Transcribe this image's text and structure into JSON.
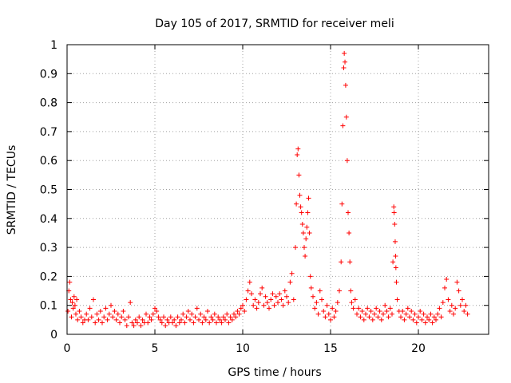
{
  "chart_data": {
    "type": "scatter",
    "title": "Day 105 of 2017, SRMTID for receiver meli",
    "xlabel": "GPS time / hours",
    "ylabel": "SRMTID / TECUs",
    "xlim": [
      0,
      24
    ],
    "ylim": [
      0,
      1
    ],
    "x_ticks": [
      0,
      5,
      10,
      15,
      20
    ],
    "y_ticks": [
      0,
      0.1,
      0.2,
      0.3,
      0.4,
      0.5,
      0.6,
      0.7,
      0.8,
      0.9,
      1
    ],
    "x_tick_labels": [
      "0",
      "5",
      "10",
      "15",
      "20"
    ],
    "y_tick_labels": [
      "0",
      "0.1",
      "0.2",
      "0.3",
      "0.4",
      "0.5",
      "0.6",
      "0.7",
      "0.8",
      "0.9",
      "1"
    ],
    "grid": true,
    "marker": "+",
    "series": [
      {
        "name": "SRMTID",
        "color": "#ff0000",
        "points": [
          [
            0.05,
            0.08
          ],
          [
            0.1,
            0.15
          ],
          [
            0.15,
            0.18
          ],
          [
            0.2,
            0.12
          ],
          [
            0.25,
            0.06
          ],
          [
            0.3,
            0.11
          ],
          [
            0.35,
            0.09
          ],
          [
            0.4,
            0.13
          ],
          [
            0.45,
            0.1
          ],
          [
            0.5,
            0.07
          ],
          [
            0.55,
            0.12
          ],
          [
            0.6,
            0.05
          ],
          [
            0.7,
            0.08
          ],
          [
            0.8,
            0.06
          ],
          [
            0.9,
            0.04
          ],
          [
            1.0,
            0.05
          ],
          [
            1.1,
            0.07
          ],
          [
            1.2,
            0.05
          ],
          [
            1.3,
            0.09
          ],
          [
            1.4,
            0.06
          ],
          [
            1.5,
            0.12
          ],
          [
            1.6,
            0.04
          ],
          [
            1.7,
            0.07
          ],
          [
            1.8,
            0.05
          ],
          [
            1.9,
            0.08
          ],
          [
            2.0,
            0.04
          ],
          [
            2.1,
            0.06
          ],
          [
            2.2,
            0.09
          ],
          [
            2.3,
            0.05
          ],
          [
            2.4,
            0.07
          ],
          [
            2.5,
            0.1
          ],
          [
            2.6,
            0.06
          ],
          [
            2.7,
            0.08
          ],
          [
            2.8,
            0.05
          ],
          [
            2.9,
            0.07
          ],
          [
            3.0,
            0.04
          ],
          [
            3.1,
            0.06
          ],
          [
            3.2,
            0.08
          ],
          [
            3.3,
            0.05
          ],
          [
            3.4,
            0.03
          ],
          [
            3.5,
            0.06
          ],
          [
            3.6,
            0.11
          ],
          [
            3.7,
            0.04
          ],
          [
            3.8,
            0.03
          ],
          [
            3.9,
            0.05
          ],
          [
            4.0,
            0.04
          ],
          [
            4.1,
            0.06
          ],
          [
            4.2,
            0.03
          ],
          [
            4.3,
            0.05
          ],
          [
            4.4,
            0.04
          ],
          [
            4.5,
            0.07
          ],
          [
            4.6,
            0.04
          ],
          [
            4.7,
            0.06
          ],
          [
            4.8,
            0.05
          ],
          [
            4.9,
            0.07
          ],
          [
            5.0,
            0.09
          ],
          [
            5.1,
            0.08
          ],
          [
            5.2,
            0.06
          ],
          [
            5.3,
            0.05
          ],
          [
            5.4,
            0.04
          ],
          [
            5.5,
            0.06
          ],
          [
            5.6,
            0.03
          ],
          [
            5.7,
            0.05
          ],
          [
            5.8,
            0.04
          ],
          [
            5.9,
            0.06
          ],
          [
            6.0,
            0.04
          ],
          [
            6.1,
            0.05
          ],
          [
            6.2,
            0.03
          ],
          [
            6.3,
            0.06
          ],
          [
            6.4,
            0.04
          ],
          [
            6.5,
            0.05
          ],
          [
            6.6,
            0.07
          ],
          [
            6.7,
            0.04
          ],
          [
            6.8,
            0.06
          ],
          [
            6.9,
            0.08
          ],
          [
            7.0,
            0.05
          ],
          [
            7.1,
            0.07
          ],
          [
            7.2,
            0.04
          ],
          [
            7.3,
            0.06
          ],
          [
            7.4,
            0.09
          ],
          [
            7.5,
            0.05
          ],
          [
            7.6,
            0.07
          ],
          [
            7.7,
            0.04
          ],
          [
            7.8,
            0.06
          ],
          [
            7.9,
            0.05
          ],
          [
            8.0,
            0.08
          ],
          [
            8.1,
            0.04
          ],
          [
            8.2,
            0.06
          ],
          [
            8.3,
            0.05
          ],
          [
            8.4,
            0.07
          ],
          [
            8.5,
            0.04
          ],
          [
            8.6,
            0.06
          ],
          [
            8.7,
            0.05
          ],
          [
            8.8,
            0.04
          ],
          [
            8.9,
            0.06
          ],
          [
            9.0,
            0.05
          ],
          [
            9.1,
            0.07
          ],
          [
            9.2,
            0.04
          ],
          [
            9.3,
            0.06
          ],
          [
            9.4,
            0.05
          ],
          [
            9.5,
            0.07
          ],
          [
            9.6,
            0.06
          ],
          [
            9.7,
            0.08
          ],
          [
            9.8,
            0.07
          ],
          [
            9.9,
            0.09
          ],
          [
            10.0,
            0.1
          ],
          [
            10.1,
            0.08
          ],
          [
            10.2,
            0.12
          ],
          [
            10.3,
            0.15
          ],
          [
            10.4,
            0.18
          ],
          [
            10.5,
            0.14
          ],
          [
            10.6,
            0.1
          ],
          [
            10.7,
            0.12
          ],
          [
            10.8,
            0.09
          ],
          [
            10.9,
            0.11
          ],
          [
            11.0,
            0.14
          ],
          [
            11.1,
            0.16
          ],
          [
            11.2,
            0.1
          ],
          [
            11.3,
            0.13
          ],
          [
            11.4,
            0.11
          ],
          [
            11.5,
            0.09
          ],
          [
            11.6,
            0.12
          ],
          [
            11.7,
            0.14
          ],
          [
            11.8,
            0.1
          ],
          [
            11.9,
            0.13
          ],
          [
            12.0,
            0.11
          ],
          [
            12.1,
            0.14
          ],
          [
            12.2,
            0.12
          ],
          [
            12.3,
            0.1
          ],
          [
            12.4,
            0.15
          ],
          [
            12.5,
            0.13
          ],
          [
            12.6,
            0.11
          ],
          [
            12.7,
            0.18
          ],
          [
            12.8,
            0.21
          ],
          [
            12.9,
            0.12
          ],
          [
            13.0,
            0.3
          ],
          [
            13.05,
            0.45
          ],
          [
            13.1,
            0.62
          ],
          [
            13.15,
            0.64
          ],
          [
            13.2,
            0.55
          ],
          [
            13.25,
            0.48
          ],
          [
            13.3,
            0.44
          ],
          [
            13.35,
            0.42
          ],
          [
            13.4,
            0.38
          ],
          [
            13.45,
            0.35
          ],
          [
            13.5,
            0.3
          ],
          [
            13.55,
            0.27
          ],
          [
            13.6,
            0.33
          ],
          [
            13.65,
            0.37
          ],
          [
            13.7,
            0.42
          ],
          [
            13.75,
            0.47
          ],
          [
            13.8,
            0.35
          ],
          [
            13.85,
            0.2
          ],
          [
            13.9,
            0.16
          ],
          [
            14.0,
            0.13
          ],
          [
            14.1,
            0.09
          ],
          [
            14.2,
            0.11
          ],
          [
            14.3,
            0.07
          ],
          [
            14.4,
            0.15
          ],
          [
            14.5,
            0.12
          ],
          [
            14.6,
            0.08
          ],
          [
            14.7,
            0.06
          ],
          [
            14.8,
            0.1
          ],
          [
            14.9,
            0.07
          ],
          [
            15.0,
            0.05
          ],
          [
            15.1,
            0.09
          ],
          [
            15.2,
            0.06
          ],
          [
            15.3,
            0.08
          ],
          [
            15.4,
            0.11
          ],
          [
            15.5,
            0.15
          ],
          [
            15.6,
            0.25
          ],
          [
            15.65,
            0.45
          ],
          [
            15.7,
            0.72
          ],
          [
            15.75,
            0.92
          ],
          [
            15.78,
            0.97
          ],
          [
            15.82,
            0.94
          ],
          [
            15.86,
            0.86
          ],
          [
            15.9,
            0.75
          ],
          [
            15.95,
            0.6
          ],
          [
            16.0,
            0.42
          ],
          [
            16.05,
            0.35
          ],
          [
            16.1,
            0.25
          ],
          [
            16.15,
            0.15
          ],
          [
            16.2,
            0.11
          ],
          [
            16.3,
            0.09
          ],
          [
            16.4,
            0.12
          ],
          [
            16.5,
            0.07
          ],
          [
            16.6,
            0.09
          ],
          [
            16.7,
            0.06
          ],
          [
            16.8,
            0.08
          ],
          [
            16.9,
            0.05
          ],
          [
            17.0,
            0.07
          ],
          [
            17.1,
            0.09
          ],
          [
            17.2,
            0.06
          ],
          [
            17.3,
            0.08
          ],
          [
            17.4,
            0.05
          ],
          [
            17.5,
            0.07
          ],
          [
            17.6,
            0.09
          ],
          [
            17.7,
            0.06
          ],
          [
            17.8,
            0.08
          ],
          [
            17.9,
            0.05
          ],
          [
            18.0,
            0.07
          ],
          [
            18.1,
            0.1
          ],
          [
            18.2,
            0.08
          ],
          [
            18.3,
            0.06
          ],
          [
            18.4,
            0.09
          ],
          [
            18.5,
            0.07
          ],
          [
            18.55,
            0.25
          ],
          [
            18.6,
            0.44
          ],
          [
            18.62,
            0.42
          ],
          [
            18.65,
            0.38
          ],
          [
            18.68,
            0.32
          ],
          [
            18.7,
            0.27
          ],
          [
            18.72,
            0.23
          ],
          [
            18.75,
            0.18
          ],
          [
            18.8,
            0.12
          ],
          [
            18.9,
            0.08
          ],
          [
            19.0,
            0.06
          ],
          [
            19.1,
            0.08
          ],
          [
            19.2,
            0.05
          ],
          [
            19.3,
            0.07
          ],
          [
            19.4,
            0.09
          ],
          [
            19.5,
            0.06
          ],
          [
            19.6,
            0.08
          ],
          [
            19.7,
            0.05
          ],
          [
            19.8,
            0.07
          ],
          [
            19.9,
            0.04
          ],
          [
            20.0,
            0.06
          ],
          [
            20.1,
            0.08
          ],
          [
            20.2,
            0.05
          ],
          [
            20.3,
            0.07
          ],
          [
            20.4,
            0.04
          ],
          [
            20.5,
            0.06
          ],
          [
            20.6,
            0.05
          ],
          [
            20.7,
            0.07
          ],
          [
            20.8,
            0.04
          ],
          [
            20.9,
            0.06
          ],
          [
            21.0,
            0.05
          ],
          [
            21.1,
            0.07
          ],
          [
            21.2,
            0.09
          ],
          [
            21.3,
            0.06
          ],
          [
            21.4,
            0.11
          ],
          [
            21.5,
            0.16
          ],
          [
            21.6,
            0.19
          ],
          [
            21.7,
            0.12
          ],
          [
            21.8,
            0.08
          ],
          [
            21.9,
            0.1
          ],
          [
            22.0,
            0.07
          ],
          [
            22.1,
            0.09
          ],
          [
            22.2,
            0.18
          ],
          [
            22.3,
            0.15
          ],
          [
            22.4,
            0.1
          ],
          [
            22.5,
            0.12
          ],
          [
            22.6,
            0.08
          ],
          [
            22.7,
            0.1
          ],
          [
            22.8,
            0.07
          ]
        ]
      }
    ]
  }
}
